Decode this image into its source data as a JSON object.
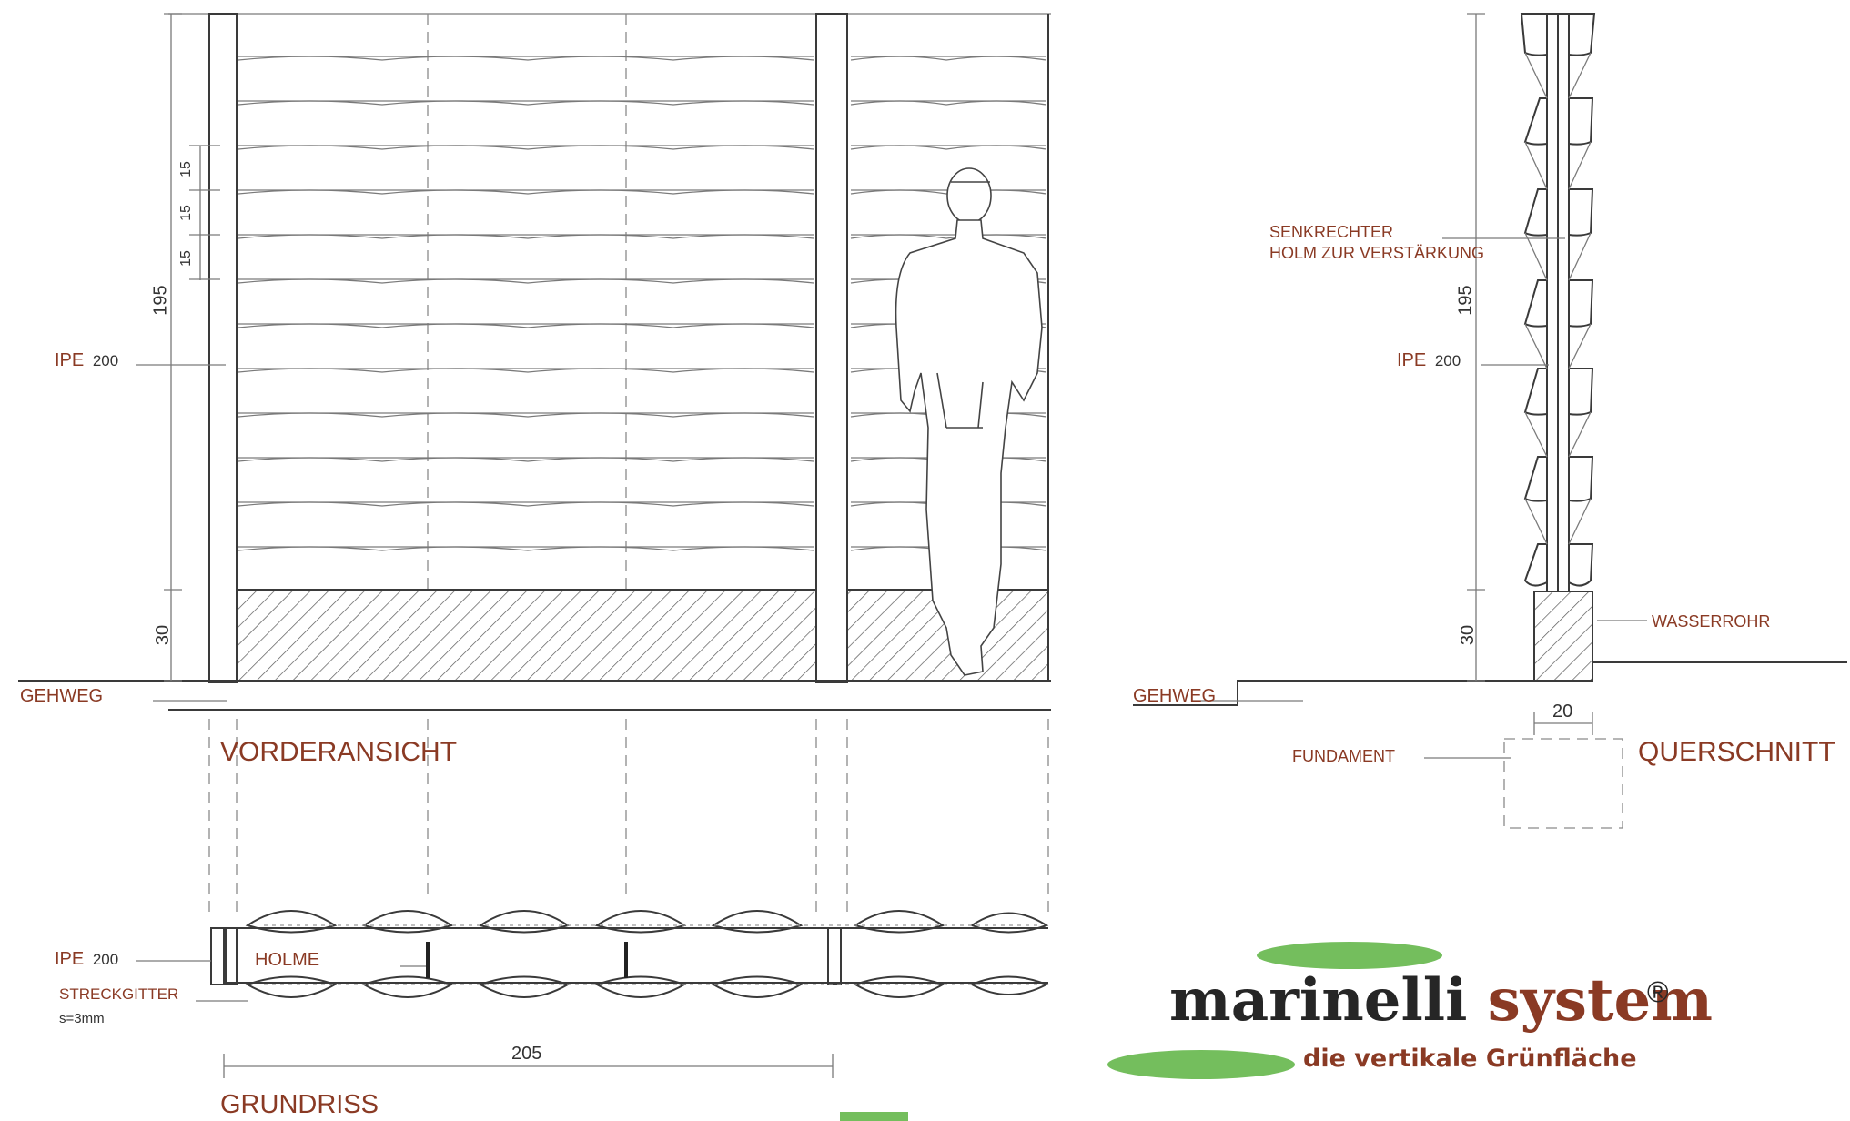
{
  "front_view": {
    "title": "VORDERANSICHT",
    "ipe_label": "IPE",
    "ipe_size": "200",
    "ground_label": "GEHWEG",
    "dim_height_upper": "195",
    "dim_height_base": "30",
    "small_dims": [
      "15",
      "15",
      "15"
    ]
  },
  "cross_section": {
    "title": "QUERSCHNITT",
    "reinforcement_label_line1": "SENKRECHTER",
    "reinforcement_label_line2": "HOLM ZUR VERSTÄRKUNG",
    "ipe_label": "IPE",
    "ipe_size": "200",
    "water_pipe_label": "WASSERROHR",
    "ground_label": "GEHWEG",
    "foundation_label": "FUNDAMENT",
    "dim_height_upper": "195",
    "dim_height_base": "30",
    "dim_width": "20"
  },
  "plan": {
    "title": "GRUNDRISS",
    "ipe_label": "IPE",
    "ipe_size": "200",
    "holme_label": "HOLME",
    "mesh_label": "STRECKGITTER",
    "mesh_thickness": "s=3mm",
    "dim_width": "205"
  },
  "logo": {
    "brand_part1": "marinelli",
    "brand_part2": "system",
    "registered": "®",
    "tagline": "die vertikale Grünfläche",
    "colors": {
      "dark": "#262626",
      "brown": "#8a3a24",
      "green": "#74be5d"
    }
  },
  "colors": {
    "label_text": "#8a3a24",
    "line": "#3a3a3a"
  }
}
